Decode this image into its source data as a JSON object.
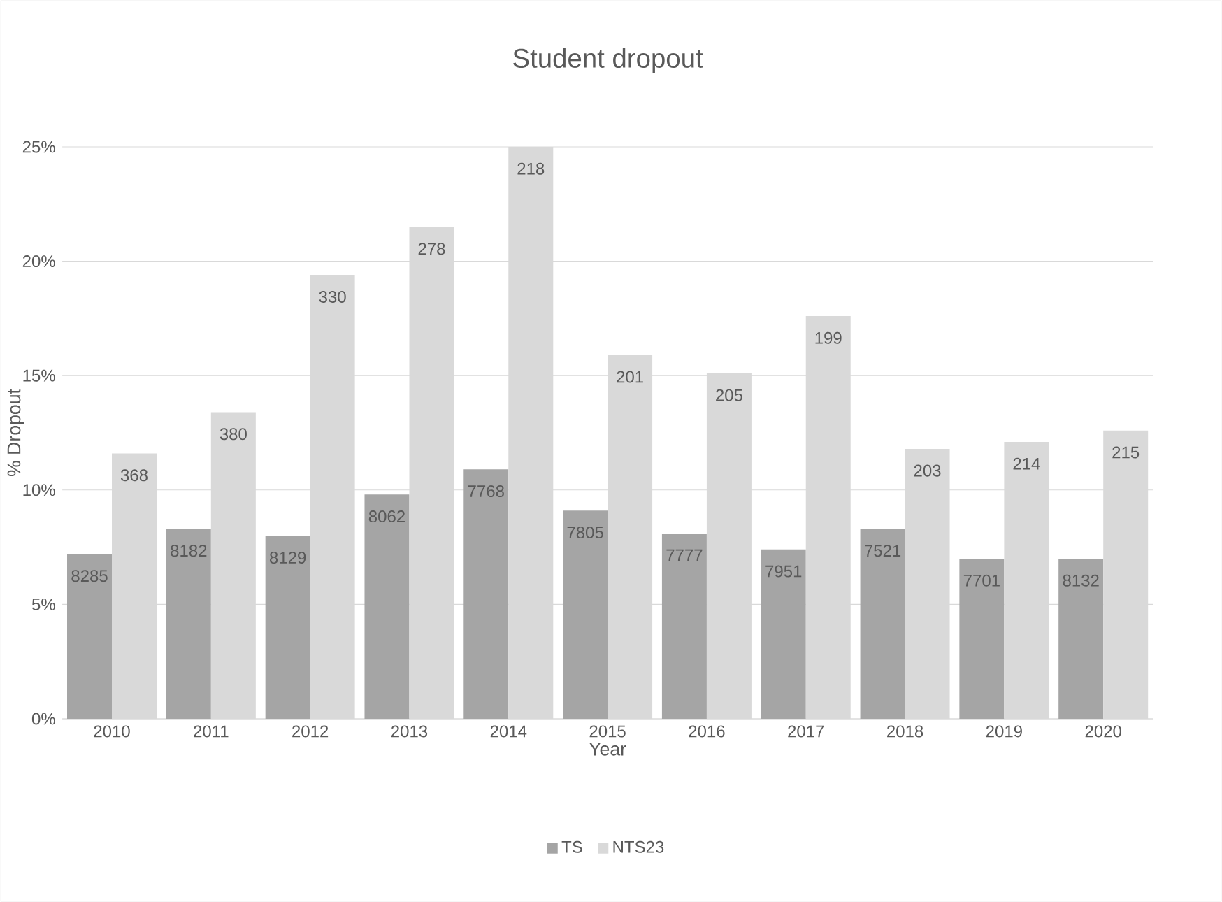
{
  "chart_data": {
    "type": "bar",
    "title": "Student dropout",
    "xlabel": "Year",
    "ylabel": "% Dropout",
    "categories": [
      "2010",
      "2011",
      "2012",
      "2013",
      "2014",
      "2015",
      "2016",
      "2017",
      "2018",
      "2019",
      "2020"
    ],
    "series": [
      {
        "name": "TS",
        "color": "#a5a5a5",
        "values": [
          7.2,
          8.3,
          8.0,
          9.8,
          10.9,
          9.1,
          8.1,
          7.4,
          8.3,
          7.0,
          7.0
        ]
      },
      {
        "name": "NTS23",
        "color": "#d9d9d9",
        "values": [
          11.6,
          13.4,
          19.4,
          21.5,
          25.0,
          15.9,
          15.1,
          17.6,
          11.8,
          12.1,
          12.6
        ]
      }
    ],
    "annotations": [
      {
        "text": "8285",
        "x": "2010",
        "y": 7.2
      },
      {
        "text": "8182",
        "x": "2011",
        "y": 8.3
      },
      {
        "text": "8129",
        "x": "2012",
        "y": 8.0
      },
      {
        "text": "8062",
        "x": "2013",
        "y": 9.8
      },
      {
        "text": "7768",
        "x": "2014",
        "y": 10.9
      },
      {
        "text": "7805",
        "x": "2015",
        "y": 9.1
      },
      {
        "text": "7777",
        "x": "2016",
        "y": 8.1
      },
      {
        "text": "7951",
        "x": "2017",
        "y": 7.4
      },
      {
        "text": "7521",
        "x": "2018",
        "y": 8.3
      },
      {
        "text": "7701",
        "x": "2019",
        "y": 7.0
      },
      {
        "text": "8132",
        "x": "2020",
        "y": 7.0
      },
      {
        "text": "368",
        "x": "2010",
        "y": 11.6
      },
      {
        "text": "380",
        "x": "2011",
        "y": 13.4
      },
      {
        "text": "330",
        "x": "2012",
        "y": 19.4
      },
      {
        "text": "278",
        "x": "2013",
        "y": 21.5
      },
      {
        "text": "218",
        "x": "2014",
        "y": 25.0
      },
      {
        "text": "201",
        "x": "2015",
        "y": 15.9
      },
      {
        "text": "205",
        "x": "2016",
        "y": 15.1
      },
      {
        "text": "199",
        "x": "2017",
        "y": 17.6
      },
      {
        "text": "203",
        "x": "2018",
        "y": 11.8
      },
      {
        "text": "214",
        "x": "2019",
        "y": 12.1
      },
      {
        "text": "215",
        "x": "2020",
        "y": 12.6
      }
    ],
    "ylim": [
      0,
      25
    ],
    "yticks": [
      {
        "value": 0,
        "label": "0%"
      },
      {
        "value": 5,
        "label": "5%"
      },
      {
        "value": 10,
        "label": "10%"
      },
      {
        "value": 15,
        "label": "15%"
      },
      {
        "value": 20,
        "label": "20%"
      },
      {
        "value": 25,
        "label": "25%"
      }
    ],
    "grid": "y",
    "legend": "bottom"
  }
}
